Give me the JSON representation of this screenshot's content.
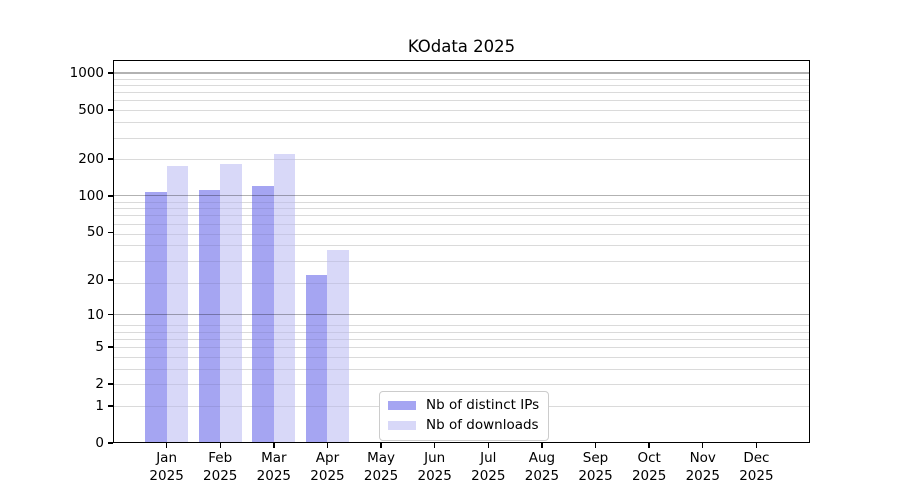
{
  "chart_data": {
    "type": "bar",
    "title": "KOdata 2025",
    "categories": [
      "Jan 2025",
      "Feb 2025",
      "Mar 2025",
      "Apr 2025",
      "May 2025",
      "Jun 2025",
      "Jul 2025",
      "Aug 2025",
      "Sep 2025",
      "Oct 2025",
      "Nov 2025",
      "Dec 2025"
    ],
    "series": [
      {
        "name": "Nb of distinct IPs",
        "color": "#a5a5f2",
        "values": [
          107,
          111,
          121,
          22,
          0,
          0,
          0,
          0,
          0,
          0,
          0,
          0
        ]
      },
      {
        "name": "Nb of downloads",
        "color": "#d8d8f8",
        "values": [
          177,
          183,
          219,
          36,
          0,
          0,
          0,
          0,
          0,
          0,
          0,
          0
        ]
      }
    ],
    "yticks": [
      0,
      1,
      2,
      5,
      10,
      20,
      50,
      100,
      200,
      500,
      1000
    ],
    "ylim": [
      0,
      1276
    ],
    "yscale": "log1p",
    "xlabel": "",
    "ylabel": "",
    "grid": true,
    "legend_position": "lower center"
  }
}
